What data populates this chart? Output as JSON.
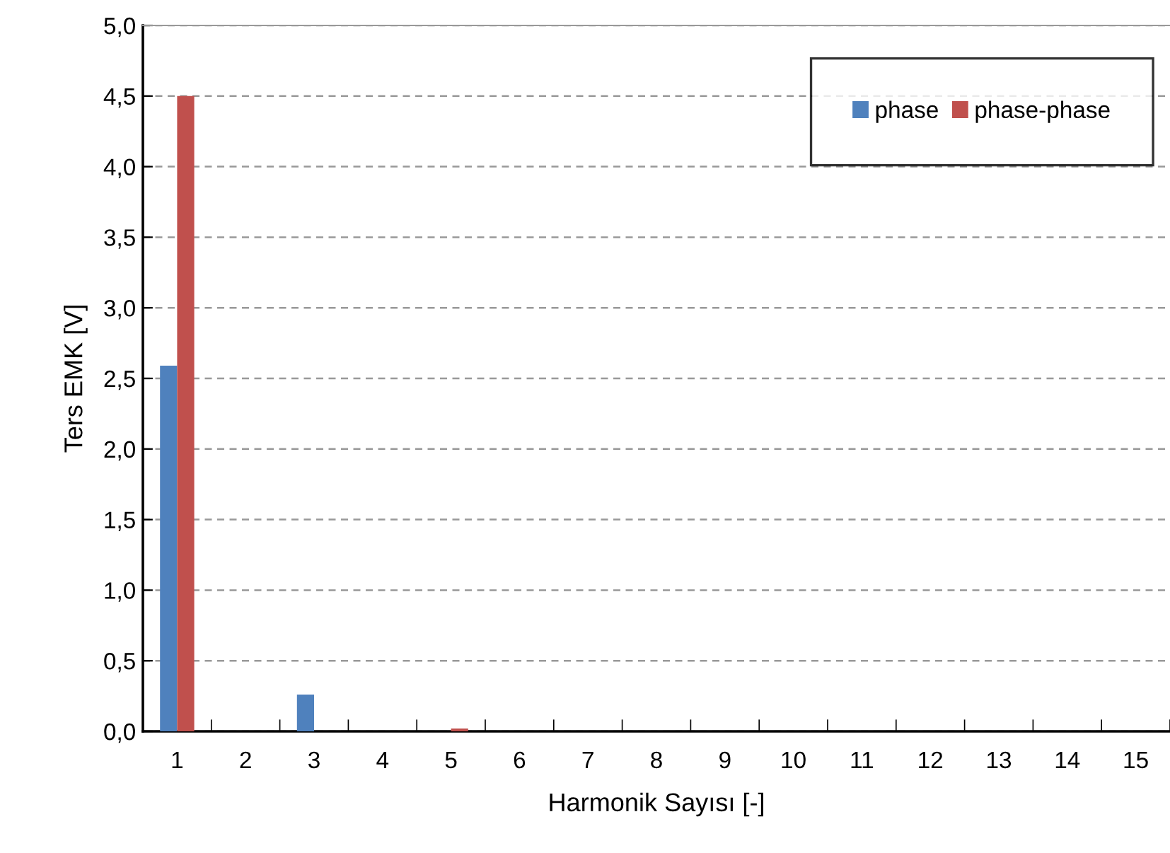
{
  "chart_data": {
    "type": "bar",
    "xlabel": "Harmonik Sayısı [-]",
    "ylabel": "Ters EMK [V]",
    "categories": [
      "1",
      "2",
      "3",
      "4",
      "5",
      "6",
      "7",
      "8",
      "9",
      "10",
      "11",
      "12",
      "13",
      "14",
      "15"
    ],
    "series": [
      {
        "name": "phase",
        "color": "#4f81bd",
        "values": [
          2.59,
          0,
          0.26,
          0,
          0,
          0,
          0,
          0,
          0,
          0,
          0,
          0,
          0,
          0,
          0
        ]
      },
      {
        "name": "phase-phase",
        "color": "#c0504d",
        "values": [
          4.5,
          0,
          0,
          0,
          0.02,
          0,
          0,
          0,
          0,
          0,
          0,
          0,
          0,
          0,
          0
        ]
      }
    ],
    "ylim": [
      0,
      5
    ],
    "yticks": [
      {
        "value": 0,
        "label": "0,0"
      },
      {
        "value": 0.5,
        "label": "0,5"
      },
      {
        "value": 1,
        "label": "1,0"
      },
      {
        "value": 1.5,
        "label": "1,5"
      },
      {
        "value": 2,
        "label": "2,0"
      },
      {
        "value": 2.5,
        "label": "2,5"
      },
      {
        "value": 3,
        "label": "3,0"
      },
      {
        "value": 3.5,
        "label": "3,5"
      },
      {
        "value": 4,
        "label": "4,0"
      },
      {
        "value": 4.5,
        "label": "4,5"
      },
      {
        "value": 5,
        "label": "5,0"
      }
    ],
    "grid": "y",
    "legend": "top right"
  }
}
